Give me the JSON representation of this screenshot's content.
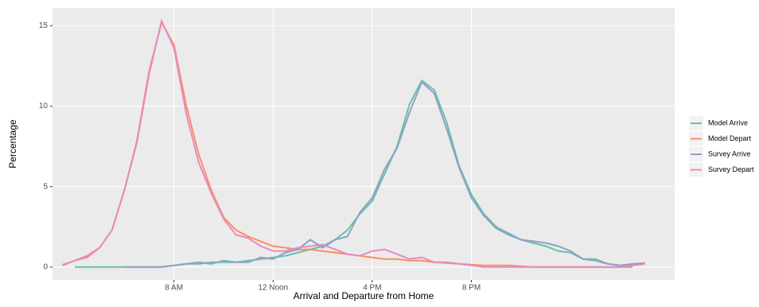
{
  "chart_data": {
    "type": "line",
    "x_label": "Arrival and Departure from Home",
    "y_label": "Percentage",
    "x": [
      3.5,
      4,
      4.5,
      5,
      5.5,
      6,
      6.5,
      7,
      7.5,
      8,
      8.5,
      9,
      9.5,
      10,
      10.5,
      11,
      11.5,
      12,
      12.5,
      13,
      13.5,
      14,
      14.5,
      15,
      15.5,
      16,
      16.5,
      17,
      17.5,
      18,
      18.5,
      19,
      19.5,
      20,
      20.5,
      21,
      21.5,
      22,
      22.5,
      23,
      23.5,
      24,
      24.5,
      25,
      25.5,
      26,
      26.5,
      27
    ],
    "series": [
      {
        "name": "Model Arrive",
        "color": "#66c2a5",
        "values": [
          null,
          0,
          0,
          0,
          0,
          0,
          0,
          0,
          0,
          0.1,
          0.2,
          0.2,
          0.3,
          0.3,
          0.3,
          0.4,
          0.5,
          0.6,
          0.7,
          0.9,
          1.1,
          1.3,
          1.7,
          2.3,
          3.3,
          4.1,
          5.8,
          7.5,
          10.1,
          11.6,
          11.0,
          9.0,
          6.3,
          4.5,
          3.3,
          2.5,
          2.1,
          1.7,
          1.5,
          1.3,
          1.0,
          0.9,
          0.5,
          0.4,
          0.2,
          0.1,
          0.1,
          0.2
        ]
      },
      {
        "name": "Model Depart",
        "color": "#fc8d62",
        "values": [
          0.1,
          0.4,
          0.7,
          1.2,
          2.3,
          4.8,
          7.8,
          12.2,
          15.2,
          13.8,
          10,
          7,
          4.8,
          3.1,
          2.3,
          1.9,
          1.6,
          1.3,
          1.2,
          1.1,
          1.1,
          1.0,
          0.9,
          0.8,
          0.7,
          0.6,
          0.5,
          0.5,
          0.4,
          0.4,
          0.3,
          0.25,
          0.2,
          0.15,
          0.1,
          0.1,
          0.1,
          0.05,
          0,
          0,
          0,
          0,
          0,
          0,
          0,
          0,
          0,
          null
        ]
      },
      {
        "name": "Survey Arrive",
        "color": "#8da0cb",
        "values": [
          null,
          null,
          null,
          null,
          null,
          0,
          0,
          0,
          0,
          0.1,
          0.2,
          0.3,
          0.2,
          0.4,
          0.3,
          0.3,
          0.6,
          0.5,
          0.9,
          1.1,
          1.7,
          1.2,
          1.7,
          1.9,
          3.4,
          4.3,
          6.1,
          7.4,
          9.6,
          11.5,
          10.8,
          8.6,
          6.2,
          4.3,
          3.2,
          2.4,
          2.0,
          1.7,
          1.6,
          1.5,
          1.3,
          1.0,
          0.5,
          0.5,
          0.2,
          0.1,
          0.2,
          0.25
        ]
      },
      {
        "name": "Survey Depart",
        "color": "#e78ac3",
        "values": [
          0.15,
          0.4,
          0.6,
          1.2,
          2.3,
          4.8,
          7.7,
          12,
          15.3,
          13.6,
          9.5,
          6.5,
          4.6,
          3.0,
          2.0,
          1.8,
          1.3,
          1.0,
          1.0,
          1.2,
          1.3,
          1.4,
          1.1,
          0.8,
          0.7,
          1.0,
          1.1,
          0.8,
          0.5,
          0.6,
          0.3,
          0.3,
          0.2,
          0.1,
          0,
          0,
          0,
          0,
          0,
          0,
          0,
          0,
          0,
          0,
          0,
          0,
          0.1,
          0.2
        ]
      }
    ],
    "xlim": [
      3.1,
      28.2
    ],
    "xticks": [
      {
        "value": 8,
        "label": "8 AM"
      },
      {
        "value": 12,
        "label": "12 Noon"
      },
      {
        "value": 16,
        "label": "4 PM"
      },
      {
        "value": 20,
        "label": "8 PM"
      }
    ],
    "ylim": [
      -0.8,
      16.1
    ],
    "yticks": [
      0,
      5,
      10,
      15
    ],
    "grid": true,
    "legend": "right"
  }
}
